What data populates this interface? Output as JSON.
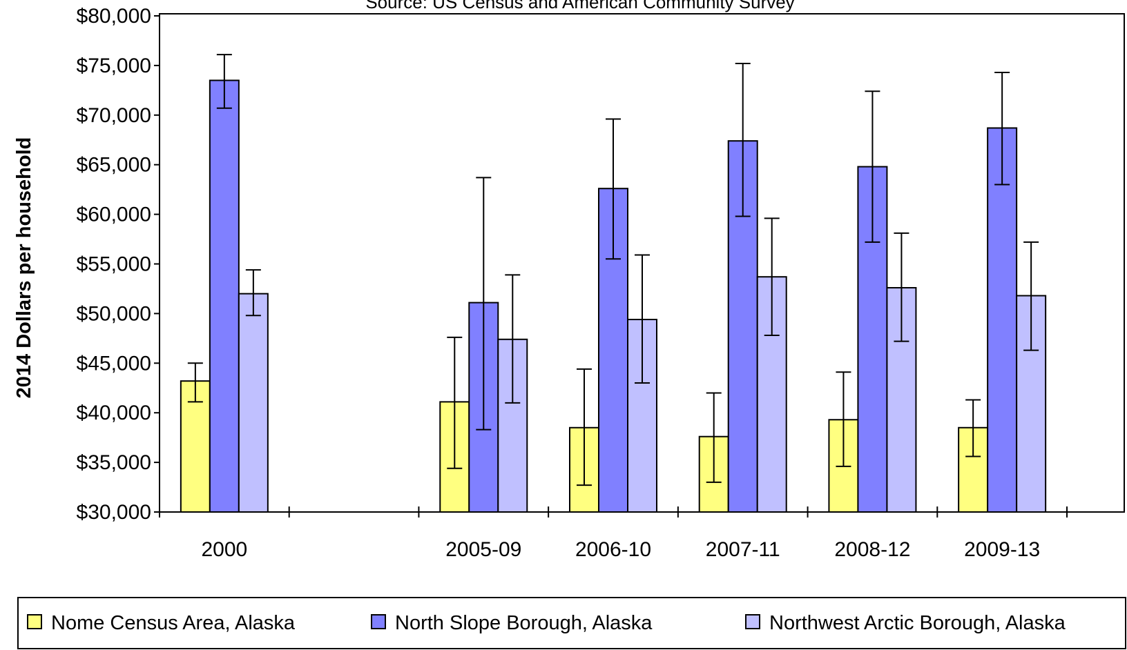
{
  "chart_data": {
    "type": "bar",
    "subtitle": "Source: US Census and American Community Survey",
    "ylabel": "2014 Dollars per household",
    "xlabel": "",
    "ylim": [
      30000,
      80000
    ],
    "ytick_step": 5000,
    "ytick_labels": [
      "$30,000",
      "$35,000",
      "$40,000",
      "$45,000",
      "$50,000",
      "$55,000",
      "$60,000",
      "$65,000",
      "$70,000",
      "$75,000",
      "$80,000"
    ],
    "category_slots": [
      "2000",
      "",
      "2005-09",
      "2006-10",
      "2007-11",
      "2008-12",
      "2009-13"
    ],
    "categories": [
      "2000",
      "2005-09",
      "2006-10",
      "2007-11",
      "2008-12",
      "2009-13"
    ],
    "series": [
      {
        "name": "Nome Census Area, Alaska",
        "color": "#FFFF80",
        "values": [
          43200,
          41100,
          38500,
          37600,
          39300,
          38500
        ],
        "err_low": [
          41100,
          34400,
          32700,
          33000,
          34600,
          35600
        ],
        "err_high": [
          45000,
          47600,
          44400,
          42000,
          44100,
          41300
        ]
      },
      {
        "name": "North Slope Borough, Alaska",
        "color": "#8080FF",
        "values": [
          73500,
          51100,
          62600,
          67400,
          64800,
          68700
        ],
        "err_low": [
          70700,
          38300,
          55500,
          59800,
          57200,
          63000
        ],
        "err_high": [
          76100,
          63700,
          69600,
          75200,
          72400,
          74300
        ]
      },
      {
        "name": "Northwest Arctic Borough, Alaska",
        "color": "#C0C0FF",
        "values": [
          52000,
          47400,
          49400,
          53700,
          52600,
          51800
        ],
        "err_low": [
          49800,
          41000,
          43000,
          47800,
          47200,
          46300
        ],
        "err_high": [
          54400,
          53900,
          55900,
          59600,
          58100,
          57200
        ]
      }
    ],
    "grid": false,
    "legend_position": "bottom"
  }
}
